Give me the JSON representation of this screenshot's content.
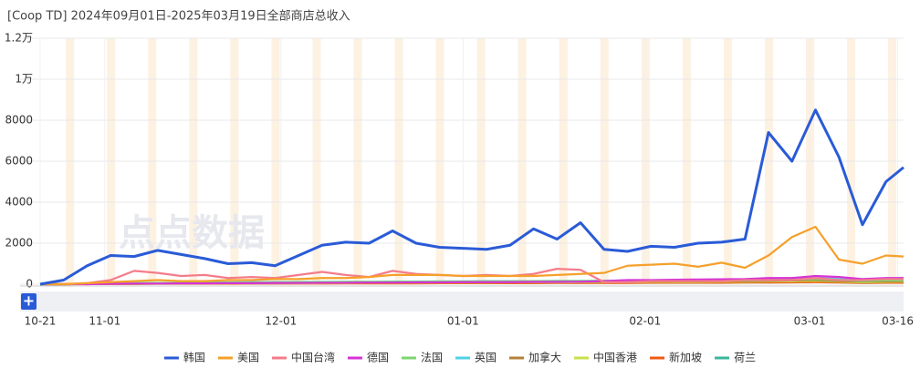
{
  "chart_data": {
    "type": "line",
    "title": "[Coop TD] 2024年09月01日-2025年03月19日全部商店总收入",
    "x": [
      0,
      4,
      8,
      12,
      16,
      20,
      24,
      28,
      32,
      36,
      40,
      44,
      48,
      52,
      56,
      60,
      64,
      68,
      72,
      76,
      80,
      84,
      88,
      92,
      96,
      100,
      104,
      108,
      112,
      116,
      120,
      124,
      128,
      132,
      136,
      140,
      144,
      147
    ],
    "xlim": [
      0,
      147
    ],
    "xticks": [
      {
        "value": 0,
        "label": "10-21"
      },
      {
        "value": 11,
        "label": "11-01"
      },
      {
        "value": 41,
        "label": "12-01"
      },
      {
        "value": 72,
        "label": "01-01"
      },
      {
        "value": 103,
        "label": "02-01"
      },
      {
        "value": 131,
        "label": "03-01"
      },
      {
        "value": 146,
        "label": "03-16"
      }
    ],
    "ylim": [
      0,
      12000
    ],
    "yticks": [
      0,
      2000,
      4000,
      6000,
      8000,
      {
        "value": 10000,
        "label": "1万"
      },
      {
        "value": 12000,
        "label": "1.2万"
      }
    ],
    "grid": true,
    "legend": "bottom",
    "series": [
      {
        "name": "韩国",
        "color": "#2a5bd7",
        "values": [
          0,
          200,
          900,
          1400,
          1350,
          1650,
          1450,
          1250,
          1000,
          1050,
          900,
          1400,
          1900,
          2050,
          2000,
          2600,
          2000,
          1800,
          1750,
          1700,
          1900,
          2700,
          2200,
          3000,
          1700,
          1600,
          1850,
          1800,
          2000,
          2050,
          2200,
          7400,
          6000,
          8500,
          6200,
          2900,
          5000,
          5700
        ]
      },
      {
        "name": "美国",
        "color": "#f5a02a",
        "values": [
          0,
          0,
          50,
          100,
          150,
          200,
          150,
          150,
          200,
          200,
          250,
          250,
          300,
          300,
          350,
          450,
          450,
          450,
          400,
          400,
          400,
          400,
          450,
          500,
          550,
          900,
          950,
          1000,
          850,
          1050,
          800,
          1400,
          2300,
          2800,
          1200,
          1000,
          1400,
          1350
        ]
      },
      {
        "name": "中国台湾",
        "color": "#f47c8a",
        "values": [
          0,
          0,
          50,
          200,
          650,
          550,
          400,
          450,
          300,
          350,
          300,
          450,
          600,
          450,
          350,
          650,
          500,
          450,
          400,
          450,
          400,
          500,
          750,
          700,
          100,
          100,
          150,
          150,
          150,
          150,
          200,
          200,
          200,
          300,
          200,
          200,
          250,
          250
        ]
      },
      {
        "name": "德国",
        "color": "#d633d6",
        "values": [
          0,
          0,
          0,
          20,
          30,
          30,
          40,
          40,
          50,
          50,
          60,
          60,
          70,
          70,
          80,
          80,
          90,
          90,
          100,
          100,
          100,
          110,
          110,
          120,
          150,
          200,
          200,
          220,
          230,
          240,
          250,
          300,
          300,
          400,
          350,
          250,
          300,
          300
        ]
      },
      {
        "name": "法国",
        "color": "#7ed66f",
        "values": [
          0,
          0,
          30,
          50,
          50,
          60,
          60,
          70,
          80,
          80,
          90,
          100,
          100,
          110,
          110,
          120,
          120,
          130,
          130,
          140,
          140,
          150,
          150,
          150,
          160,
          170,
          170,
          180,
          180,
          190,
          190,
          200,
          220,
          250,
          200,
          150,
          180,
          180
        ]
      },
      {
        "name": "英国",
        "color": "#4fd1e6",
        "values": [
          0,
          0,
          20,
          40,
          50,
          60,
          70,
          80,
          90,
          100,
          100,
          110,
          110,
          120,
          120,
          130,
          130,
          140,
          140,
          150,
          150,
          150,
          160,
          160,
          170,
          180,
          180,
          190,
          190,
          200,
          200,
          220,
          250,
          300,
          250,
          200,
          220,
          230
        ]
      },
      {
        "name": "加拿大",
        "color": "#b5813a",
        "values": [
          0,
          0,
          10,
          20,
          30,
          40,
          40,
          50,
          50,
          60,
          60,
          70,
          70,
          80,
          80,
          90,
          90,
          100,
          100,
          100,
          100,
          110,
          110,
          120,
          120,
          130,
          130,
          140,
          140,
          150,
          150,
          160,
          180,
          200,
          150,
          120,
          140,
          150
        ]
      },
      {
        "name": "中国香港",
        "color": "#c9e04a",
        "values": [
          0,
          0,
          10,
          20,
          20,
          30,
          30,
          40,
          40,
          50,
          50,
          50,
          60,
          60,
          70,
          70,
          70,
          80,
          80,
          80,
          90,
          90,
          90,
          100,
          100,
          100,
          110,
          110,
          110,
          120,
          120,
          130,
          140,
          160,
          120,
          90,
          110,
          120
        ]
      },
      {
        "name": "新加坡",
        "color": "#f05a14",
        "values": [
          0,
          0,
          10,
          10,
          10,
          20,
          20,
          20,
          20,
          30,
          30,
          30,
          30,
          40,
          40,
          40,
          40,
          50,
          50,
          50,
          50,
          50,
          60,
          60,
          60,
          60,
          70,
          70,
          70,
          70,
          80,
          80,
          90,
          100,
          80,
          60,
          70,
          70
        ]
      },
      {
        "name": "荷兰",
        "color": "#3bb59c",
        "values": [
          0,
          0,
          10,
          20,
          20,
          30,
          30,
          30,
          40,
          40,
          40,
          50,
          50,
          50,
          60,
          60,
          60,
          70,
          70,
          70,
          70,
          80,
          80,
          80,
          90,
          90,
          90,
          100,
          100,
          100,
          110,
          110,
          120,
          140,
          110,
          90,
          100,
          100
        ]
      }
    ]
  },
  "watermark": "点点数据",
  "zoom_button": "+"
}
